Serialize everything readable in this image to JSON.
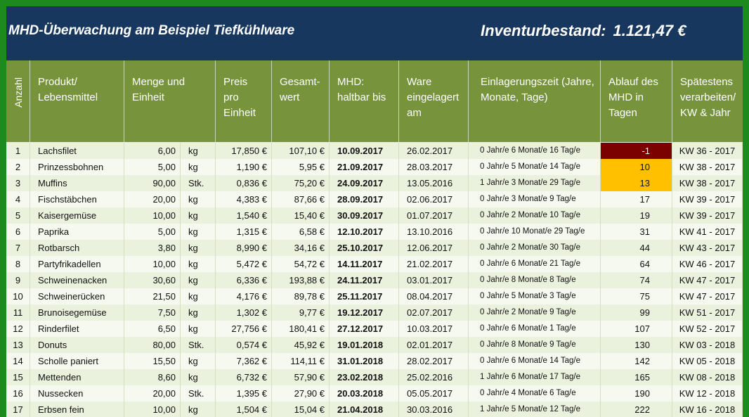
{
  "title": "MHD-Überwachung am Beispiel Tiefkühlware",
  "inventory": {
    "label": "Inventurbestand:",
    "value": "1.121,47 €"
  },
  "headers": {
    "anzahl": "Anzahl",
    "produkt": "Produkt/ Lebensmittel",
    "menge": "Menge und Einheit",
    "preis": "Preis pro Einheit",
    "gesamt": "Gesamt- wert",
    "mhd": "MHD: haltbar bis",
    "ware": "Ware eingelagert am",
    "einlagerung": "Einlagerungszeit (Jahre, Monate, Tage)",
    "ablauf": "Ablauf des MHD in Tagen",
    "spaetestens": "Spätestens verarbeiten/ KW & Jahr"
  },
  "colors": {
    "negative": "#7b0000",
    "warning": "#ffc000",
    "header": "#77933c",
    "titlebar": "#17375e"
  },
  "rows": [
    {
      "n": "1",
      "produkt": "Lachsfilet",
      "menge": "6,00",
      "einheit": "kg",
      "preis": "17,850 €",
      "gesamt": "107,10 €",
      "mhd": "10.09.2017",
      "ware": "26.02.2017",
      "zeit": "0 Jahr/e  6 Monat/e  16 Tag/e",
      "ablauf": "-1",
      "status": "negative",
      "kw": "KW 36 - 2017"
    },
    {
      "n": "2",
      "produkt": "Prinzessbohnen",
      "menge": "5,00",
      "einheit": "kg",
      "preis": "1,190 €",
      "gesamt": "5,95 €",
      "mhd": "21.09.2017",
      "ware": "28.03.2017",
      "zeit": "0 Jahr/e  5 Monat/e  14 Tag/e",
      "ablauf": "10",
      "status": "warning",
      "kw": "KW 38 - 2017"
    },
    {
      "n": "3",
      "produkt": "Muffins",
      "menge": "90,00",
      "einheit": "Stk.",
      "preis": "0,836 €",
      "gesamt": "75,20 €",
      "mhd": "24.09.2017",
      "ware": "13.05.2016",
      "zeit": "1 Jahr/e  3 Monat/e  29 Tag/e",
      "ablauf": "13",
      "status": "warning",
      "kw": "KW 38 - 2017"
    },
    {
      "n": "4",
      "produkt": "Fischstäbchen",
      "menge": "20,00",
      "einheit": "kg",
      "preis": "4,383 €",
      "gesamt": "87,66 €",
      "mhd": "28.09.2017",
      "ware": "02.06.2017",
      "zeit": "0 Jahr/e  3 Monat/e  9 Tag/e",
      "ablauf": "17",
      "status": "",
      "kw": "KW 39 - 2017"
    },
    {
      "n": "5",
      "produkt": "Kaisergemüse",
      "menge": "10,00",
      "einheit": "kg",
      "preis": "1,540 €",
      "gesamt": "15,40 €",
      "mhd": "30.09.2017",
      "ware": "01.07.2017",
      "zeit": "0 Jahr/e  2 Monat/e  10 Tag/e",
      "ablauf": "19",
      "status": "",
      "kw": "KW 39 - 2017"
    },
    {
      "n": "6",
      "produkt": "Paprika",
      "menge": "5,00",
      "einheit": "kg",
      "preis": "1,315 €",
      "gesamt": "6,58 €",
      "mhd": "12.10.2017",
      "ware": "13.10.2016",
      "zeit": "0 Jahr/e  10 Monat/e  29 Tag/e",
      "ablauf": "31",
      "status": "",
      "kw": "KW 41 - 2017"
    },
    {
      "n": "7",
      "produkt": "Rotbarsch",
      "menge": "3,80",
      "einheit": "kg",
      "preis": "8,990 €",
      "gesamt": "34,16 €",
      "mhd": "25.10.2017",
      "ware": "12.06.2017",
      "zeit": "0 Jahr/e  2 Monat/e  30 Tag/e",
      "ablauf": "44",
      "status": "",
      "kw": "KW 43 - 2017"
    },
    {
      "n": "8",
      "produkt": "Partyfrikadellen",
      "menge": "10,00",
      "einheit": "kg",
      "preis": "5,472 €",
      "gesamt": "54,72 €",
      "mhd": "14.11.2017",
      "ware": "21.02.2017",
      "zeit": "0 Jahr/e  6 Monat/e  21 Tag/e",
      "ablauf": "64",
      "status": "",
      "kw": "KW 46 - 2017"
    },
    {
      "n": "9",
      "produkt": "Schweinenacken",
      "menge": "30,60",
      "einheit": "kg",
      "preis": "6,336 €",
      "gesamt": "193,88 €",
      "mhd": "24.11.2017",
      "ware": "03.01.2017",
      "zeit": "0 Jahr/e  8 Monat/e  8 Tag/e",
      "ablauf": "74",
      "status": "",
      "kw": "KW 47 - 2017"
    },
    {
      "n": "10",
      "produkt": "Schweinerücken",
      "menge": "21,50",
      "einheit": "kg",
      "preis": "4,176 €",
      "gesamt": "89,78 €",
      "mhd": "25.11.2017",
      "ware": "08.04.2017",
      "zeit": "0 Jahr/e  5 Monat/e  3 Tag/e",
      "ablauf": "75",
      "status": "",
      "kw": "KW 47 - 2017"
    },
    {
      "n": "11",
      "produkt": "Brunoisegemüse",
      "menge": "7,50",
      "einheit": "kg",
      "preis": "1,302 €",
      "gesamt": "9,77 €",
      "mhd": "19.12.2017",
      "ware": "02.07.2017",
      "zeit": "0 Jahr/e  2 Monat/e  9 Tag/e",
      "ablauf": "99",
      "status": "",
      "kw": "KW 51 - 2017"
    },
    {
      "n": "12",
      "produkt": "Rinderfilet",
      "menge": "6,50",
      "einheit": "kg",
      "preis": "27,756 €",
      "gesamt": "180,41 €",
      "mhd": "27.12.2017",
      "ware": "10.03.2017",
      "zeit": "0 Jahr/e  6 Monat/e  1 Tag/e",
      "ablauf": "107",
      "status": "",
      "kw": "KW 52 - 2017"
    },
    {
      "n": "13",
      "produkt": "Donuts",
      "menge": "80,00",
      "einheit": "Stk.",
      "preis": "0,574 €",
      "gesamt": "45,92 €",
      "mhd": "19.01.2018",
      "ware": "02.01.2017",
      "zeit": "0 Jahr/e  8 Monat/e  9 Tag/e",
      "ablauf": "130",
      "status": "",
      "kw": "KW 03 - 2018"
    },
    {
      "n": "14",
      "produkt": "Scholle paniert",
      "menge": "15,50",
      "einheit": "kg",
      "preis": "7,362 €",
      "gesamt": "114,11 €",
      "mhd": "31.01.2018",
      "ware": "28.02.2017",
      "zeit": "0 Jahr/e  6 Monat/e  14 Tag/e",
      "ablauf": "142",
      "status": "",
      "kw": "KW 05 - 2018"
    },
    {
      "n": "15",
      "produkt": "Mettenden",
      "menge": "8,60",
      "einheit": "kg",
      "preis": "6,732 €",
      "gesamt": "57,90 €",
      "mhd": "23.02.2018",
      "ware": "25.02.2016",
      "zeit": "1 Jahr/e  6 Monat/e  17 Tag/e",
      "ablauf": "165",
      "status": "",
      "kw": "KW 08 - 2018"
    },
    {
      "n": "16",
      "produkt": "Nussecken",
      "menge": "20,00",
      "einheit": "Stk.",
      "preis": "1,395 €",
      "gesamt": "27,90 €",
      "mhd": "20.03.2018",
      "ware": "05.05.2017",
      "zeit": "0 Jahr/e  4 Monat/e  6 Tag/e",
      "ablauf": "190",
      "status": "",
      "kw": "KW 12 - 2018"
    },
    {
      "n": "17",
      "produkt": "Erbsen fein",
      "menge": "10,00",
      "einheit": "kg",
      "preis": "1,504 €",
      "gesamt": "15,04 €",
      "mhd": "21.04.2018",
      "ware": "30.03.2016",
      "zeit": "1 Jahr/e  5 Monat/e  12 Tag/e",
      "ablauf": "222",
      "status": "",
      "kw": "KW 16 - 2018"
    }
  ]
}
